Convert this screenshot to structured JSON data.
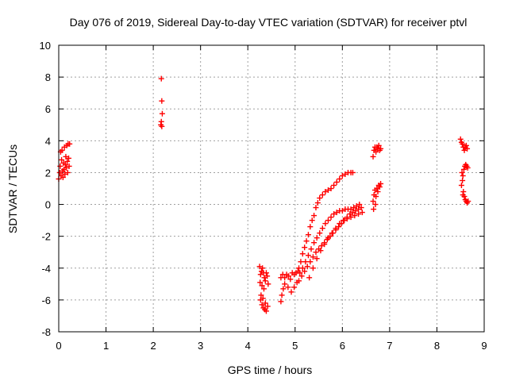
{
  "chart_data": {
    "type": "scatter",
    "title": "Day 076 of 2019, Sidereal Day-to-day VTEC variation (SDTVAR) for receiver ptvl",
    "xlabel": "GPS time / hours",
    "ylabel": "SDTVAR / TECUs",
    "xlim": [
      0,
      9
    ],
    "ylim": [
      -8,
      10
    ],
    "xticks": [
      "0",
      "1",
      "2",
      "3",
      "4",
      "5",
      "6",
      "7",
      "8",
      "9"
    ],
    "yticks": [
      "-8",
      "-6",
      "-4",
      "-2",
      "0",
      "2",
      "4",
      "6",
      "8",
      "10"
    ],
    "grid": true,
    "marker": "+",
    "color": "#ff0000",
    "series": [
      {
        "name": "SDTVAR",
        "points": [
          [
            0.0,
            1.6
          ],
          [
            0.02,
            2.0
          ],
          [
            0.03,
            2.4
          ],
          [
            0.04,
            3.3
          ],
          [
            0.05,
            1.8
          ],
          [
            0.06,
            2.8
          ],
          [
            0.07,
            3.4
          ],
          [
            0.08,
            2.1
          ],
          [
            0.09,
            1.7
          ],
          [
            0.1,
            2.6
          ],
          [
            0.11,
            2.2
          ],
          [
            0.12,
            3.6
          ],
          [
            0.13,
            1.9
          ],
          [
            0.14,
            2.5
          ],
          [
            0.15,
            3.0
          ],
          [
            0.16,
            2.3
          ],
          [
            0.17,
            3.7
          ],
          [
            0.18,
            2.7
          ],
          [
            0.19,
            2.0
          ],
          [
            0.2,
            3.8
          ],
          [
            0.21,
            2.9
          ],
          [
            0.22,
            2.4
          ],
          [
            0.23,
            3.8
          ],
          [
            2.17,
            7.9
          ],
          [
            2.18,
            6.5
          ],
          [
            2.19,
            5.7
          ],
          [
            2.17,
            5.2
          ],
          [
            2.18,
            4.9
          ],
          [
            2.16,
            5.0
          ],
          [
            4.25,
            -3.9
          ],
          [
            4.27,
            -4.4
          ],
          [
            4.29,
            -4.2
          ],
          [
            4.31,
            -4.0
          ],
          [
            4.33,
            -4.3
          ],
          [
            4.35,
            -4.6
          ],
          [
            4.37,
            -4.8
          ],
          [
            4.39,
            -4.3
          ],
          [
            4.41,
            -4.5
          ],
          [
            4.43,
            -5.0
          ],
          [
            4.26,
            -4.9
          ],
          [
            4.3,
            -5.1
          ],
          [
            4.34,
            -5.3
          ],
          [
            4.27,
            -6.0
          ],
          [
            4.3,
            -6.3
          ],
          [
            4.33,
            -6.5
          ],
          [
            4.36,
            -6.6
          ],
          [
            4.39,
            -6.7
          ],
          [
            4.42,
            -6.4
          ],
          [
            4.28,
            -5.7
          ],
          [
            4.32,
            -5.9
          ],
          [
            4.37,
            -6.2
          ],
          [
            4.7,
            -6.1
          ],
          [
            4.72,
            -5.7
          ],
          [
            4.75,
            -5.3
          ],
          [
            4.78,
            -5.0
          ],
          [
            4.7,
            -4.6
          ],
          [
            4.74,
            -4.4
          ],
          [
            4.78,
            -4.6
          ],
          [
            4.82,
            -4.4
          ],
          [
            4.86,
            -4.5
          ],
          [
            4.9,
            -4.7
          ],
          [
            4.94,
            -4.3
          ],
          [
            4.98,
            -4.4
          ],
          [
            5.02,
            -4.3
          ],
          [
            5.06,
            -4.2
          ],
          [
            4.85,
            -5.2
          ],
          [
            4.92,
            -5.5
          ],
          [
            4.98,
            -5.2
          ],
          [
            5.04,
            -4.9
          ],
          [
            5.08,
            -4.0
          ],
          [
            5.12,
            -3.6
          ],
          [
            5.16,
            -3.1
          ],
          [
            5.2,
            -2.7
          ],
          [
            5.24,
            -2.3
          ],
          [
            5.28,
            -1.9
          ],
          [
            5.32,
            -1.4
          ],
          [
            5.36,
            -1.0
          ],
          [
            5.4,
            -0.7
          ],
          [
            5.44,
            -0.2
          ],
          [
            5.48,
            0.1
          ],
          [
            5.52,
            0.4
          ],
          [
            5.58,
            0.6
          ],
          [
            5.64,
            0.8
          ],
          [
            5.7,
            0.9
          ],
          [
            5.76,
            1.0
          ],
          [
            5.82,
            1.2
          ],
          [
            5.88,
            1.4
          ],
          [
            5.94,
            1.6
          ],
          [
            6.0,
            1.8
          ],
          [
            6.06,
            1.9
          ],
          [
            6.12,
            2.0
          ],
          [
            6.18,
            2.0
          ],
          [
            6.22,
            2.0
          ],
          [
            5.1,
            -4.3
          ],
          [
            5.16,
            -4.0
          ],
          [
            5.22,
            -3.6
          ],
          [
            5.28,
            -3.2
          ],
          [
            5.34,
            -2.8
          ],
          [
            5.4,
            -2.4
          ],
          [
            5.46,
            -2.1
          ],
          [
            5.52,
            -1.8
          ],
          [
            5.58,
            -1.5
          ],
          [
            5.64,
            -1.2
          ],
          [
            5.7,
            -1.0
          ],
          [
            5.76,
            -0.8
          ],
          [
            5.82,
            -0.6
          ],
          [
            5.88,
            -0.5
          ],
          [
            5.94,
            -0.4
          ],
          [
            6.0,
            -0.4
          ],
          [
            6.06,
            -0.3
          ],
          [
            6.12,
            -0.3
          ],
          [
            6.18,
            -0.3
          ],
          [
            6.24,
            -0.2
          ],
          [
            6.3,
            -0.1
          ],
          [
            6.36,
            0.0
          ],
          [
            5.08,
            -4.8
          ],
          [
            5.14,
            -4.5
          ],
          [
            5.2,
            -4.2
          ],
          [
            5.26,
            -3.9
          ],
          [
            5.32,
            -3.6
          ],
          [
            5.38,
            -3.3
          ],
          [
            5.44,
            -3.0
          ],
          [
            5.5,
            -2.8
          ],
          [
            5.56,
            -2.6
          ],
          [
            5.62,
            -2.4
          ],
          [
            5.68,
            -2.2
          ],
          [
            5.74,
            -2.0
          ],
          [
            5.8,
            -1.8
          ],
          [
            5.86,
            -1.6
          ],
          [
            5.92,
            -1.4
          ],
          [
            5.98,
            -1.2
          ],
          [
            6.04,
            -1.0
          ],
          [
            6.1,
            -0.8
          ],
          [
            6.16,
            -0.6
          ],
          [
            6.22,
            -0.5
          ],
          [
            6.28,
            -0.4
          ],
          [
            6.34,
            -0.3
          ],
          [
            6.4,
            -0.2
          ],
          [
            5.3,
            -4.6
          ],
          [
            5.38,
            -4.0
          ],
          [
            5.46,
            -3.4
          ],
          [
            5.54,
            -2.9
          ],
          [
            5.62,
            -2.5
          ],
          [
            5.7,
            -2.1
          ],
          [
            5.78,
            -1.8
          ],
          [
            5.86,
            -1.5
          ],
          [
            5.94,
            -1.2
          ],
          [
            6.02,
            -1.0
          ],
          [
            6.1,
            -0.9
          ],
          [
            6.18,
            -0.8
          ],
          [
            6.26,
            -0.7
          ],
          [
            6.34,
            -0.6
          ],
          [
            6.42,
            -0.5
          ],
          [
            6.65,
            3.0
          ],
          [
            6.67,
            3.4
          ],
          [
            6.69,
            3.6
          ],
          [
            6.71,
            3.3
          ],
          [
            6.73,
            3.6
          ],
          [
            6.75,
            3.5
          ],
          [
            6.77,
            3.7
          ],
          [
            6.79,
            3.4
          ],
          [
            6.81,
            3.5
          ],
          [
            6.65,
            0.2
          ],
          [
            6.67,
            0.6
          ],
          [
            6.69,
            0.9
          ],
          [
            6.71,
            0.5
          ],
          [
            6.73,
            1.0
          ],
          [
            6.75,
            0.8
          ],
          [
            6.77,
            1.2
          ],
          [
            6.79,
            1.1
          ],
          [
            6.81,
            1.3
          ],
          [
            6.66,
            -0.3
          ],
          [
            6.7,
            0.0
          ],
          [
            8.5,
            4.1
          ],
          [
            8.52,
            3.9
          ],
          [
            8.54,
            3.8
          ],
          [
            8.56,
            3.6
          ],
          [
            8.58,
            3.4
          ],
          [
            8.6,
            3.6
          ],
          [
            8.62,
            3.7
          ],
          [
            8.64,
            3.5
          ],
          [
            8.53,
            2.0
          ],
          [
            8.55,
            1.8
          ],
          [
            8.57,
            2.2
          ],
          [
            8.59,
            2.4
          ],
          [
            8.61,
            2.5
          ],
          [
            8.63,
            2.4
          ],
          [
            8.65,
            2.3
          ],
          [
            8.52,
            1.2
          ],
          [
            8.54,
            1.5
          ],
          [
            8.56,
            0.8
          ],
          [
            8.58,
            0.5
          ],
          [
            8.6,
            0.3
          ],
          [
            8.62,
            0.2
          ],
          [
            8.64,
            0.1
          ],
          [
            8.66,
            0.2
          ],
          [
            8.55,
            0.6
          ]
        ]
      }
    ]
  }
}
